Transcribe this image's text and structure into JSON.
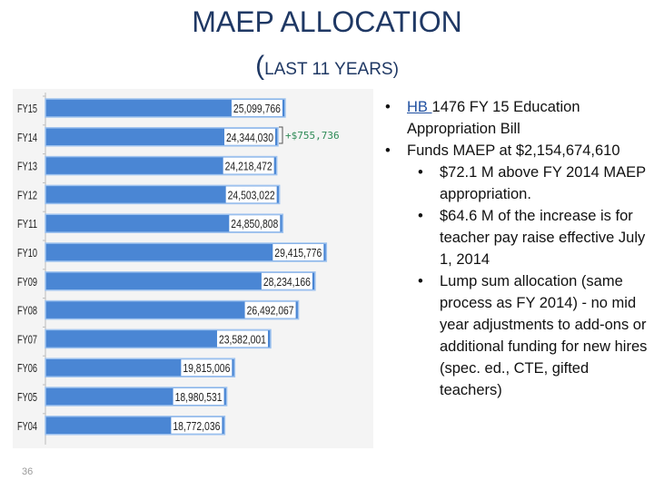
{
  "title": {
    "line1": "MAEP ALLOCATION",
    "paren": "(",
    "line2": "LAST 11 YEARS)"
  },
  "annotation": "+$755,736",
  "page_number": "36",
  "bullets": {
    "b1_link": "HB ",
    "b1_rest": "1476 FY 15 Education Appropriation Bill",
    "b2": "Funds MAEP at $2,154,674,610",
    "sub": [
      "$72.1 M above FY 2014 MAEP appropriation.",
      "$64.6 M of the increase is for teacher pay raise effective July 1, 2014",
      "Lump sum allocation (same process as FY 2014) - no mid year adjustments to add-ons or additional funding for new hires (spec. ed., CTE, gifted teachers)"
    ]
  },
  "colors": {
    "bar_fill": "#4a86d4",
    "bar_stroke": "#9fc3ef",
    "title": "#1f3864",
    "annotation": "#2e8b57",
    "label_bg": "#ffffff"
  },
  "chart_data": {
    "type": "bar",
    "orientation": "horizontal",
    "categories": [
      "FY15",
      "FY14",
      "FY13",
      "FY12",
      "FY11",
      "FY10",
      "FY09",
      "FY08",
      "FY07",
      "FY06",
      "FY05",
      "FY04"
    ],
    "values": [
      25099766,
      24344030,
      24218472,
      24503022,
      24850808,
      29415776,
      28234166,
      26492067,
      23582001,
      19815006,
      18980531,
      18772036
    ],
    "labels": [
      "25,099,766",
      "24,344,030",
      "24,218,472",
      "24,503,022",
      "24,850,808",
      "29,415,776",
      "28,234,166",
      "26,492,067",
      "23,582,001",
      "19,815,006",
      "18,980,531",
      "18,772,036"
    ],
    "title": "",
    "xlabel": "",
    "ylabel": "",
    "xlim": [
      0,
      33000000
    ],
    "grid": false
  }
}
